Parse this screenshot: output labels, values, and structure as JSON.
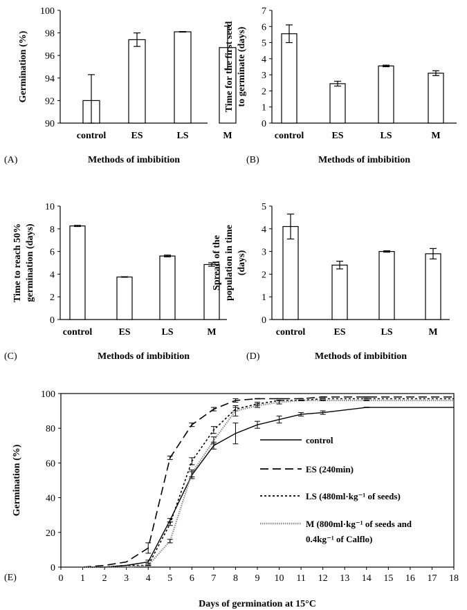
{
  "chart_data": [
    {
      "panel": "(A)",
      "type": "bar",
      "categories": [
        "control",
        "ES",
        "LS",
        "M"
      ],
      "values": [
        92.0,
        97.4,
        98.1,
        96.7
      ],
      "errors": [
        2.3,
        0.6,
        0.0,
        1.9
      ],
      "xlabel": "Methods of imbibition",
      "ylabel": "Germination (%)",
      "ylim": [
        90,
        100
      ],
      "yticks": [
        90,
        92,
        94,
        96,
        98,
        100
      ]
    },
    {
      "panel": "(B)",
      "type": "bar",
      "categories": [
        "control",
        "ES",
        "LS",
        "M"
      ],
      "values": [
        5.55,
        2.45,
        3.55,
        3.1
      ],
      "errors": [
        0.55,
        0.15,
        0.05,
        0.15
      ],
      "xlabel": "Methods of imbibition",
      "ylabel": [
        "Time for the first seed",
        "to germinate (days)"
      ],
      "ylim": [
        0,
        7
      ],
      "yticks": [
        0,
        1,
        2,
        3,
        4,
        5,
        6,
        7
      ]
    },
    {
      "panel": "(C)",
      "type": "bar",
      "categories": [
        "control",
        "ES",
        "LS",
        "M"
      ],
      "values": [
        8.25,
        3.75,
        5.6,
        4.85
      ],
      "errors": [
        0.05,
        0.0,
        0.08,
        0.15
      ],
      "xlabel": "Methods of imbibition",
      "ylabel": [
        "Time to reach 50%",
        "germination (days)"
      ],
      "ylim": [
        0,
        10
      ],
      "yticks": [
        0,
        2,
        4,
        6,
        8,
        10
      ]
    },
    {
      "panel": "(D)",
      "type": "bar",
      "categories": [
        "control",
        "ES",
        "LS",
        "M"
      ],
      "values": [
        4.1,
        2.4,
        3.0,
        2.9
      ],
      "errors": [
        0.55,
        0.17,
        0.03,
        0.23
      ],
      "xlabel": "Methods of imbibition",
      "ylabel": [
        "Spread of the",
        "population in time",
        "(days)"
      ],
      "ylim": [
        0,
        5
      ],
      "yticks": [
        0,
        1,
        2,
        3,
        4,
        5
      ]
    },
    {
      "panel": "(E)",
      "type": "line",
      "xlabel": "Days of germination at 15°C",
      "ylabel": "Germination (%)",
      "xlim": [
        0,
        18
      ],
      "ylim": [
        0,
        100
      ],
      "xticks": [
        0,
        1,
        2,
        3,
        4,
        5,
        6,
        7,
        8,
        9,
        10,
        11,
        12,
        13,
        14,
        15,
        16,
        17,
        18
      ],
      "yticks": [
        0,
        20,
        40,
        60,
        80,
        100
      ],
      "series": [
        {
          "name": "control",
          "style": "solid",
          "x": [
            1,
            2,
            3,
            4,
            5,
            6,
            7,
            8,
            9,
            10,
            11,
            12,
            14,
            18
          ],
          "y": [
            0,
            0,
            1,
            3,
            27,
            53,
            70,
            77,
            82,
            85,
            88,
            89,
            92,
            92
          ],
          "err": [
            0,
            0,
            0,
            1,
            1,
            2,
            2,
            6,
            2,
            2,
            1,
            1,
            0,
            0
          ]
        },
        {
          "name": "ES (240min)",
          "style": "long-dash",
          "x": [
            1,
            2,
            3,
            4,
            5,
            6,
            7,
            8,
            9,
            10,
            11,
            12,
            14,
            18
          ],
          "y": [
            0,
            1,
            3,
            11,
            63,
            82,
            91,
            96,
            97,
            97,
            97,
            98,
            98,
            98
          ],
          "err": [
            0,
            0,
            0,
            3,
            1,
            1,
            1,
            1,
            0,
            0,
            0,
            0,
            0,
            0
          ]
        },
        {
          "name": "LS (480ml·kg⁻¹ of seeds)",
          "style": "dotted",
          "x": [
            1,
            2,
            3,
            4,
            5,
            6,
            7,
            8,
            9,
            10,
            11,
            12,
            14,
            18
          ],
          "y": [
            0,
            0,
            1,
            1,
            25,
            61,
            79,
            91,
            94,
            96,
            96,
            97,
            97,
            97
          ],
          "err": [
            0,
            0,
            0,
            0,
            1,
            2,
            2,
            1,
            1,
            0,
            0,
            0,
            0,
            0
          ]
        },
        {
          "name": "M (800ml·kg⁻¹ of seeds and 0.4kg⁻¹ of Calflo)",
          "style": "grey",
          "x": [
            1,
            2,
            3,
            4,
            5,
            6,
            7,
            8,
            9,
            10,
            11,
            12,
            14,
            18
          ],
          "y": [
            0,
            0,
            0,
            1,
            15,
            54,
            73,
            90,
            93,
            95,
            96,
            96,
            96,
            96
          ],
          "err": [
            0,
            0,
            0,
            0,
            1,
            2,
            2,
            3,
            1,
            1,
            0,
            0,
            0,
            0
          ]
        }
      ],
      "legend_lines": [
        [
          "control"
        ],
        [
          "ES (240min)"
        ],
        [
          "LS (480ml·kg⁻¹ of seeds)"
        ],
        [
          "M (800ml·kg⁻¹ of seeds and",
          "0.4kg⁻¹ of Calflo)"
        ]
      ]
    }
  ]
}
